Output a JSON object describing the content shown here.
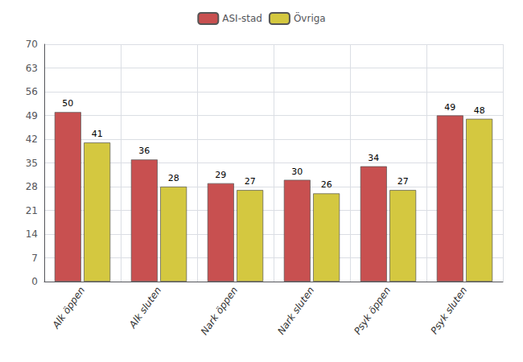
{
  "chart_data": {
    "type": "bar",
    "categories": [
      "Alk öppen",
      "Alk sluten",
      "Nark öppen",
      "Nark sluten",
      "Psyk öppen",
      "Psyk sluten"
    ],
    "series": [
      {
        "name": "ASI-stad",
        "color": "#c85050",
        "values": [
          50,
          36,
          29,
          30,
          34,
          49
        ]
      },
      {
        "name": "Övriga",
        "color": "#d4c840",
        "values": [
          41,
          28,
          27,
          26,
          27,
          48
        ]
      }
    ],
    "ylim": [
      0,
      70
    ],
    "yticks": [
      0,
      7,
      14,
      21,
      28,
      35,
      42,
      49,
      56,
      63,
      70
    ],
    "grid": true,
    "legend": "top",
    "data_labels": true
  }
}
